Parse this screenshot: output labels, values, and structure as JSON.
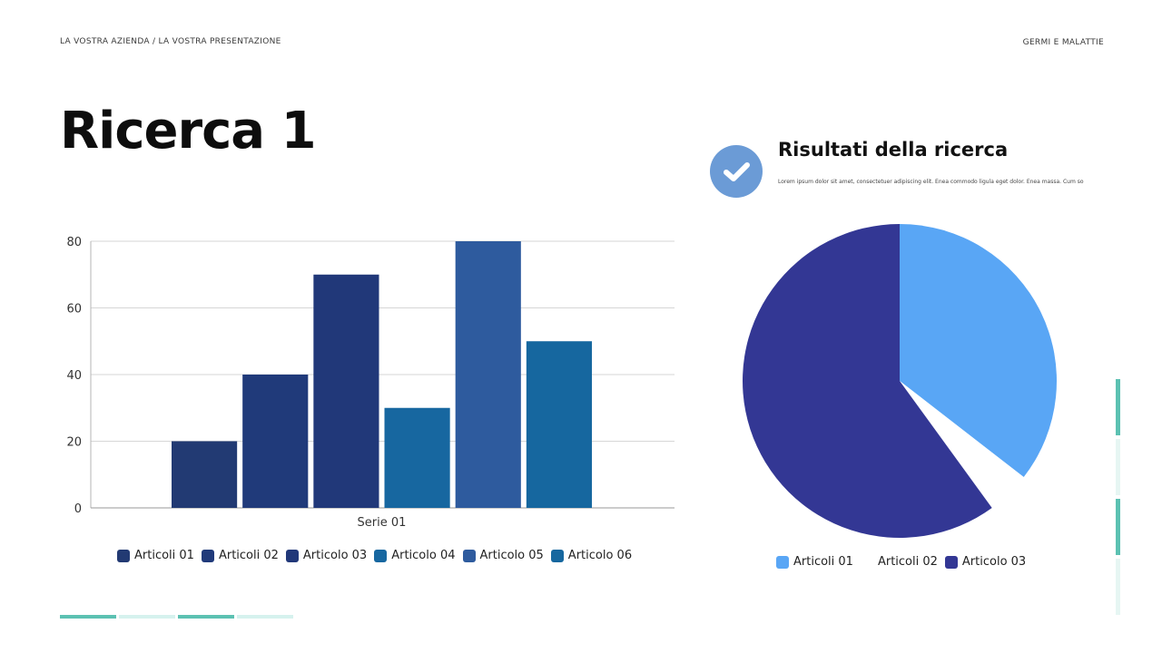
{
  "header": {
    "left_text": "LA VOSTRA AZIENDA / LA VOSTRA PRESENTAZIONE",
    "right_text": "GERMI E MALATTIE"
  },
  "title": "Ricerca 1",
  "results": {
    "title": "Risultati della ricerca",
    "body": "Lorem ipsum dolor sit amet, consectetuer adipiscing elit. Enea commodo ligula eget dolor. Enea massa. Cum so",
    "icon": "check-icon"
  },
  "colors": {
    "accent_teal": "#5cc1b2",
    "accent_teal_light": "#d6f2ee",
    "badge": "#6b9bd6"
  },
  "chart_data": [
    {
      "type": "bar",
      "categories": [
        "Serie 01"
      ],
      "series": [
        {
          "name": "Articoli 01",
          "values": [
            20
          ],
          "color": "#223a73"
        },
        {
          "name": "Articoli 02",
          "values": [
            40
          ],
          "color": "#203a7a"
        },
        {
          "name": "Articolo 03",
          "values": [
            70
          ],
          "color": "#213879"
        },
        {
          "name": "Articolo 04",
          "values": [
            30
          ],
          "color": "#1767a0"
        },
        {
          "name": "Articolo 05",
          "values": [
            80
          ],
          "color": "#2e5b9e"
        },
        {
          "name": "Articolo 06",
          "values": [
            50
          ],
          "color": "#16679f"
        }
      ],
      "ylim": [
        0,
        80
      ],
      "yticks": [
        0,
        20,
        40,
        60,
        80
      ],
      "grid": true,
      "legend": "bottom"
    },
    {
      "type": "pie",
      "slices": [
        {
          "label": "Articoli 01",
          "value": 35.5,
          "color": "#59a6f5",
          "exploded": false
        },
        {
          "label": "Articoli 02",
          "value": 4.5,
          "color": "#ffffff",
          "exploded": false
        },
        {
          "label": "Articolo 03",
          "value": 60,
          "color": "#333794",
          "exploded": false
        }
      ],
      "legend": "bottom"
    }
  ]
}
